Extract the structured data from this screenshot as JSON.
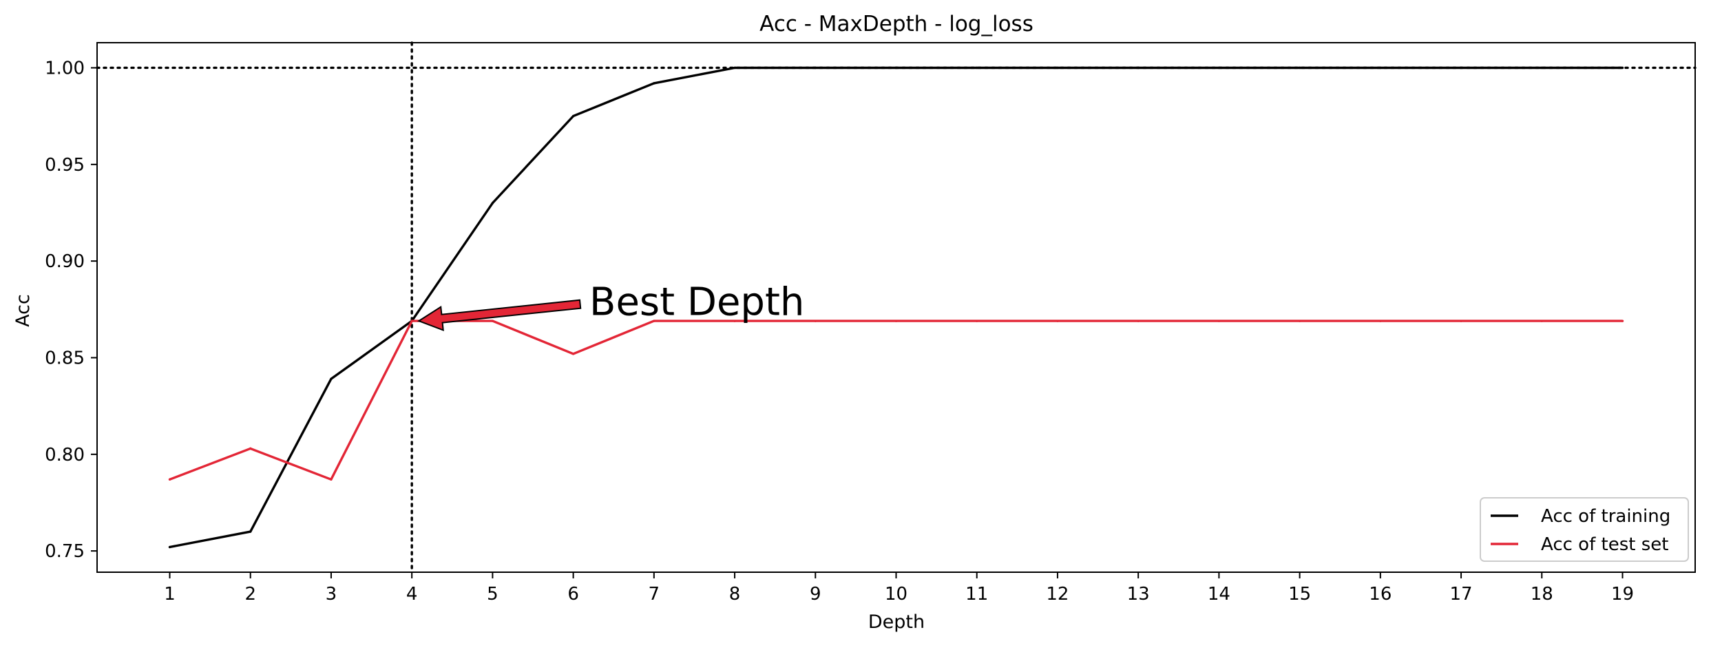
{
  "chart_data": {
    "type": "line",
    "title": "Acc - MaxDepth - log_loss",
    "xlabel": "Depth",
    "ylabel": "Acc",
    "x": [
      1,
      2,
      3,
      4,
      5,
      6,
      7,
      8,
      9,
      10,
      11,
      12,
      13,
      14,
      15,
      16,
      17,
      18,
      19
    ],
    "xticks": [
      "1",
      "2",
      "3",
      "4",
      "5",
      "6",
      "7",
      "8",
      "9",
      "10",
      "11",
      "12",
      "13",
      "14",
      "15",
      "16",
      "17",
      "18",
      "19"
    ],
    "yticks": [
      "0.75",
      "0.80",
      "0.85",
      "0.90",
      "0.95",
      "1.00"
    ],
    "ytick_values": [
      0.75,
      0.8,
      0.85,
      0.9,
      0.95,
      1.0
    ],
    "xlim": [
      0.1,
      19.9
    ],
    "ylim": [
      0.739,
      1.013
    ],
    "grid": false,
    "legend_position": "lower-right",
    "series": [
      {
        "name": "Acc of training",
        "color": "#000000",
        "values": [
          0.752,
          0.76,
          0.839,
          0.869,
          0.93,
          0.975,
          0.992,
          1.0,
          1.0,
          1.0,
          1.0,
          1.0,
          1.0,
          1.0,
          1.0,
          1.0,
          1.0,
          1.0,
          1.0
        ]
      },
      {
        "name": "Acc of test set",
        "color": "#e32636",
        "values": [
          0.787,
          0.803,
          0.787,
          0.869,
          0.869,
          0.852,
          0.869,
          0.869,
          0.869,
          0.869,
          0.869,
          0.869,
          0.869,
          0.869,
          0.869,
          0.869,
          0.869,
          0.869,
          0.869
        ]
      }
    ],
    "reference_lines": {
      "horizontal_y": 1.0,
      "vertical_x": 4,
      "style": "dotted"
    },
    "annotation": {
      "text": "Best Depth",
      "point": [
        4,
        0.869
      ],
      "text_anchor": [
        6.2,
        0.877
      ],
      "arrow_color": "#e32636"
    }
  }
}
